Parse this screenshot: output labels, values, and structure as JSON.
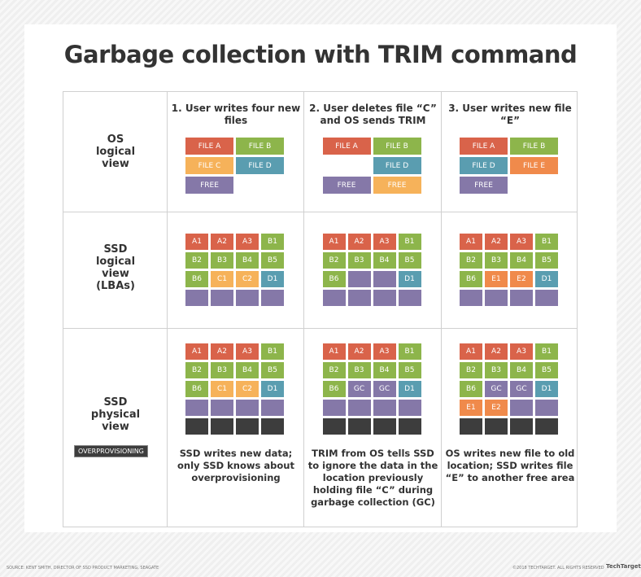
{
  "title": "Garbage collection with TRIM command",
  "colors": {
    "A": "#d9634a",
    "B": "#8db54b",
    "C": "#f6b25a",
    "D": "#5a9db0",
    "E": "#f08a4b",
    "F": "#8578a8",
    "X": "#3d3d3d",
    "G": "#8578a8"
  },
  "row_labels": [
    "OS\nlogical\nview",
    "SSD\nlogical\nview\n(LBAs)",
    "SSD\nphysical\nview"
  ],
  "overprovisioning_label": "OVERPROVISIONING",
  "columns": [
    {
      "heading": "1. User writes four new files",
      "os": [
        [
          "FILE A",
          "A"
        ],
        [
          "FILE B",
          "B"
        ],
        [
          "FILE C",
          "C"
        ],
        [
          "FILE D",
          "D"
        ],
        [
          "FREE",
          "F"
        ],
        null
      ],
      "logical": [
        [
          "A1",
          "A2",
          "A3",
          "B1"
        ],
        [
          "B2",
          "B3",
          "B4",
          "B5"
        ],
        [
          "B6",
          "C1",
          "C2",
          "D1"
        ],
        [
          "",
          "",
          "",
          ""
        ]
      ],
      "physical": [
        [
          "A1",
          "A2",
          "A3",
          "B1"
        ],
        [
          "B2",
          "B3",
          "B4",
          "B5"
        ],
        [
          "B6",
          "C1",
          "C2",
          "D1"
        ],
        [
          "",
          "",
          "",
          ""
        ],
        [
          "#",
          "#",
          "#",
          "#"
        ]
      ],
      "description": "SSD writes new data; only SSD knows about overprovisioning"
    },
    {
      "heading": "2. User deletes file “C” and OS sends TRIM",
      "os": [
        [
          "FILE A",
          "A"
        ],
        [
          "FILE B",
          "B"
        ],
        null,
        [
          "FILE D",
          "D"
        ],
        [
          "FREE",
          "F"
        ],
        [
          "FREE",
          "C"
        ]
      ],
      "logical": [
        [
          "A1",
          "A2",
          "A3",
          "B1"
        ],
        [
          "B2",
          "B3",
          "B4",
          "B5"
        ],
        [
          "B6",
          "",
          "",
          "D1"
        ],
        [
          "",
          "",
          "",
          ""
        ]
      ],
      "physical": [
        [
          "A1",
          "A2",
          "A3",
          "B1"
        ],
        [
          "B2",
          "B3",
          "B4",
          "B5"
        ],
        [
          "B6",
          "GC",
          "GC",
          "D1"
        ],
        [
          "",
          "",
          "",
          ""
        ],
        [
          "#",
          "#",
          "#",
          "#"
        ]
      ],
      "description": "TRIM from OS tells SSD to ignore the data in the location previously holding file “C” during garbage collection (GC)"
    },
    {
      "heading": "3. User writes new file “E”",
      "os": [
        [
          "FILE A",
          "A"
        ],
        [
          "FILE B",
          "B"
        ],
        [
          "FILE D",
          "D"
        ],
        [
          "FILE E",
          "E"
        ],
        [
          "FREE",
          "F"
        ],
        null
      ],
      "logical": [
        [
          "A1",
          "A2",
          "A3",
          "B1"
        ],
        [
          "B2",
          "B3",
          "B4",
          "B5"
        ],
        [
          "B6",
          "E1",
          "E2",
          "D1"
        ],
        [
          "",
          "",
          "",
          ""
        ]
      ],
      "physical": [
        [
          "A1",
          "A2",
          "A3",
          "B1"
        ],
        [
          "B2",
          "B3",
          "B4",
          "B5"
        ],
        [
          "B6",
          "GC",
          "GC",
          "D1"
        ],
        [
          "E1",
          "E2",
          "",
          ""
        ],
        [
          "#",
          "#",
          "#",
          "#"
        ]
      ],
      "description": "OS writes new file to old location; SSD writes file “E” to another free area"
    }
  ],
  "footer": {
    "source": "SOURCE: KENT SMITH, DIRECTOR OF SSD PRODUCT MARKETING, SEAGATE",
    "copyright": "©2018 TECHTARGET. ALL RIGHTS RESERVED",
    "logo": "TechTarget"
  }
}
